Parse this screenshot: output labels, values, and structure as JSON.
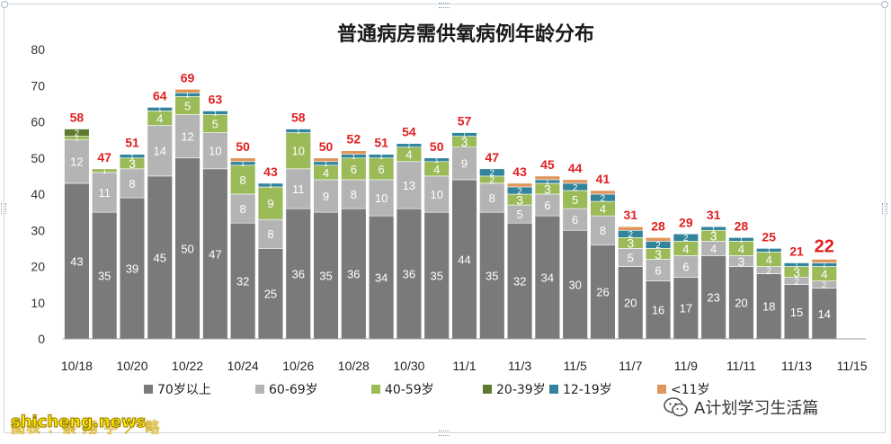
{
  "chart_data": {
    "type": "bar",
    "stacked": true,
    "title": "普通病房需供氧病例年龄分布",
    "ylim": [
      0,
      80
    ],
    "yticks": [
      "0",
      "10",
      "20",
      "30",
      "40",
      "50",
      "60",
      "70",
      "80"
    ],
    "x_tick_labels": [
      "10/18",
      "10/20",
      "10/22",
      "10/24",
      "10/26",
      "10/28",
      "10/30",
      "11/1",
      "11/3",
      "11/5",
      "11/7",
      "11/9",
      "11/11",
      "11/13",
      "11/15"
    ],
    "categories": [
      "10/18",
      "10/19",
      "10/20",
      "10/21",
      "10/22",
      "10/23",
      "10/24",
      "10/25",
      "10/26",
      "10/27",
      "10/28",
      "10/29",
      "10/30",
      "10/31",
      "11/1",
      "11/2",
      "11/3",
      "11/4",
      "11/5",
      "11/6",
      "11/7",
      "11/8",
      "11/9",
      "11/10",
      "11/11",
      "11/12",
      "11/13",
      "11/14"
    ],
    "series": [
      {
        "name": "70岁以上",
        "color": "#7a7a7a",
        "values": [
          43,
          35,
          39,
          45,
          50,
          47,
          32,
          25,
          36,
          35,
          36,
          34,
          36,
          35,
          44,
          35,
          32,
          34,
          30,
          26,
          20,
          16,
          17,
          23,
          20,
          18,
          15,
          14
        ]
      },
      {
        "name": "60-69岁",
        "color": "#b4b4b4",
        "values": [
          12,
          11,
          8,
          14,
          12,
          10,
          8,
          8,
          11,
          9,
          8,
          10,
          13,
          10,
          9,
          8,
          5,
          6,
          6,
          8,
          5,
          6,
          6,
          4,
          3,
          2,
          2,
          2
        ]
      },
      {
        "name": "40-59岁",
        "color": "#9bbb59",
        "values": [
          1,
          1,
          3,
          4,
          5,
          5,
          8,
          9,
          10,
          4,
          6,
          6,
          4,
          4,
          3,
          2,
          3,
          3,
          5,
          4,
          3,
          3,
          4,
          3,
          4,
          4,
          3,
          4
        ]
      },
      {
        "name": "20-39岁",
        "color": "#5e7a2e",
        "values": [
          2,
          0,
          0,
          0,
          0,
          0,
          0,
          0,
          0,
          0,
          0,
          0,
          0,
          0,
          0,
          0,
          0,
          0,
          0,
          0,
          0,
          0,
          0,
          0,
          0,
          0,
          0,
          0
        ]
      },
      {
        "name": "12-19岁",
        "color": "#31849b",
        "values": [
          0,
          0,
          1,
          1,
          1,
          1,
          1,
          1,
          1,
          1,
          1,
          1,
          1,
          1,
          1,
          2,
          2,
          1,
          2,
          2,
          2,
          2,
          2,
          1,
          1,
          1,
          1,
          1
        ]
      },
      {
        "name": "<11岁",
        "color": "#e0955a",
        "values": [
          0,
          0,
          0,
          0,
          1,
          0,
          1,
          0,
          0,
          1,
          1,
          0,
          0,
          0,
          0,
          0,
          1,
          1,
          1,
          1,
          1,
          1,
          0,
          0,
          0,
          0,
          0,
          1
        ]
      }
    ],
    "show_value_labels": [
      [
        true,
        true,
        true,
        true,
        true,
        true,
        true,
        true,
        true,
        true,
        true,
        true,
        true,
        true,
        true,
        true,
        true,
        true,
        true,
        true,
        true,
        true,
        true,
        true,
        true,
        true,
        true,
        true
      ],
      [
        true,
        true,
        true,
        true,
        true,
        true,
        true,
        true,
        true,
        true,
        true,
        true,
        true,
        true,
        true,
        true,
        true,
        true,
        true,
        true,
        true,
        true,
        true,
        true,
        true,
        true,
        true,
        true
      ],
      [
        true,
        true,
        true,
        true,
        true,
        true,
        true,
        true,
        true,
        true,
        true,
        true,
        true,
        true,
        true,
        true,
        true,
        true,
        true,
        true,
        true,
        true,
        true,
        true,
        true,
        true,
        true,
        true
      ],
      [
        true,
        false,
        false,
        false,
        false,
        false,
        false,
        false,
        false,
        false,
        false,
        false,
        false,
        false,
        false,
        false,
        false,
        false,
        false,
        false,
        false,
        false,
        false,
        false,
        false,
        false,
        false,
        false
      ],
      [
        false,
        false,
        true,
        true,
        true,
        true,
        true,
        true,
        true,
        true,
        true,
        true,
        true,
        true,
        true,
        true,
        true,
        true,
        true,
        true,
        true,
        true,
        true,
        true,
        true,
        true,
        true,
        true
      ],
      [
        false,
        false,
        false,
        false,
        false,
        false,
        false,
        false,
        false,
        false,
        false,
        false,
        false,
        false,
        false,
        false,
        false,
        false,
        false,
        false,
        false,
        false,
        false,
        false,
        false,
        false,
        false,
        false
      ]
    ],
    "totals": [
      58,
      47,
      51,
      64,
      69,
      63,
      50,
      43,
      58,
      50,
      52,
      51,
      54,
      50,
      57,
      47,
      43,
      45,
      44,
      41,
      31,
      28,
      29,
      31,
      28,
      25,
      21,
      22
    ],
    "total_label_color": "#e02020",
    "legend_position": "bottom",
    "grid": false
  },
  "footer": {
    "site": "shicheng.news",
    "credit": "图表 ：蔡 翔 宇 ／ 略",
    "brand": "A计划学习生活篇"
  }
}
